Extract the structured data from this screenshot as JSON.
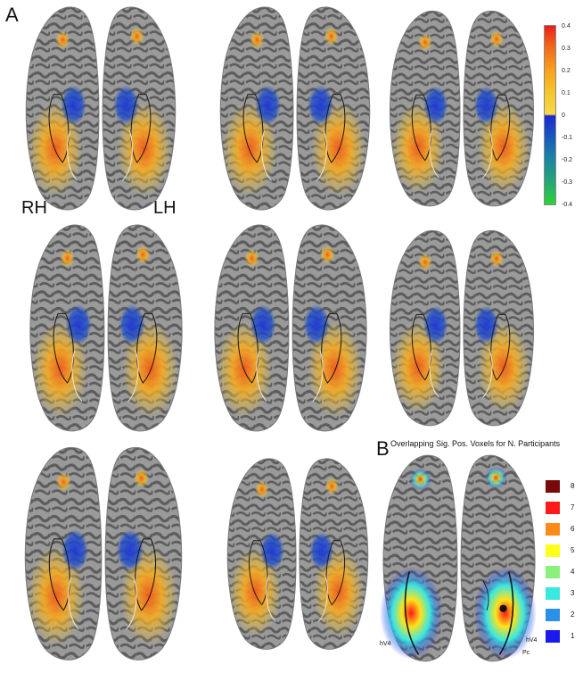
{
  "panel_a": {
    "letter": "A",
    "hemisphere_labels": {
      "right": "RH",
      "left": "LH"
    },
    "colorbar": {
      "ticks": [
        "0.4",
        "0.3",
        "0.2",
        "0.1",
        "0",
        "-0.1",
        "-0.2",
        "-0.3",
        "-0.4"
      ],
      "positive_color": "#f7b82a",
      "negative_color": "#1e3fd0",
      "peak_color": "#e8201a",
      "min_color": "#2ed23a"
    }
  },
  "panel_b": {
    "letter": "B",
    "title": "Overlapping Sig. Pos. Voxels for N. Participants",
    "legend": [
      {
        "label": "8",
        "color": "#7a0a0a"
      },
      {
        "label": "7",
        "color": "#ff1a1a"
      },
      {
        "label": "6",
        "color": "#ff8a1a"
      },
      {
        "label": "5",
        "color": "#ffff1a"
      },
      {
        "label": "4",
        "color": "#8af27a"
      },
      {
        "label": "3",
        "color": "#3ae8e0"
      },
      {
        "label": "2",
        "color": "#2a90e8"
      },
      {
        "label": "1",
        "color": "#1a1aee"
      }
    ],
    "roi_labels": {
      "left_hv4": "hV4",
      "right_hv4": "hV4",
      "pc": "Pc"
    }
  }
}
